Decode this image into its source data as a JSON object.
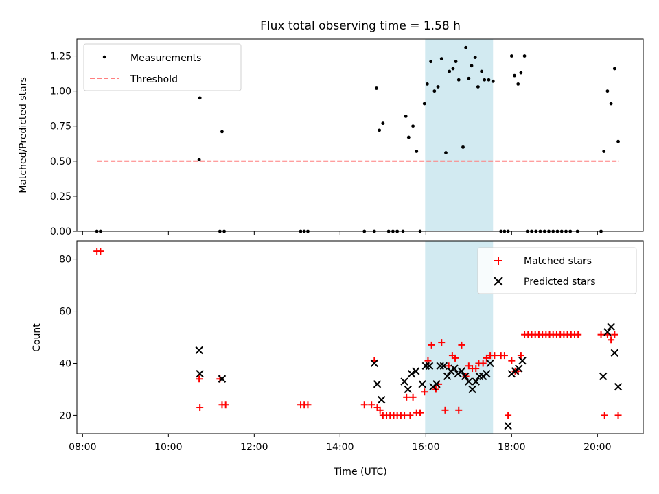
{
  "chart_data": [
    {
      "type": "scatter",
      "title": "Flux total observing time = 1.58 h",
      "ylabel": "Matched/Predicted stars",
      "xlim": [
        "07:52",
        "21:04"
      ],
      "ylim": [
        0,
        1.37
      ],
      "yticks": [
        "0.00",
        "0.25",
        "0.50",
        "0.75",
        "1.00",
        "1.25"
      ],
      "shaded_span": {
        "start": "15:59",
        "end": "17:34",
        "color": "#add8e6"
      },
      "legend_position": "top-left",
      "series": [
        {
          "name": "Measurements",
          "marker": "dot",
          "color": "#000000",
          "points": [
            [
              "08:20",
              0
            ],
            [
              "08:25",
              0
            ],
            [
              "10:44",
              0.95
            ],
            [
              "10:43",
              0.51
            ],
            [
              "11:15",
              0.71
            ],
            [
              "11:12",
              0
            ],
            [
              "11:18",
              0
            ],
            [
              "13:05",
              0
            ],
            [
              "13:10",
              0
            ],
            [
              "13:15",
              0
            ],
            [
              "14:34",
              0
            ],
            [
              "14:48",
              0
            ],
            [
              "14:51",
              1.02
            ],
            [
              "14:55",
              0.72
            ],
            [
              "15:00",
              0.77
            ],
            [
              "15:08",
              0
            ],
            [
              "15:14",
              0
            ],
            [
              "15:20",
              0
            ],
            [
              "15:28",
              0
            ],
            [
              "15:32",
              0.82
            ],
            [
              "15:36",
              0.67
            ],
            [
              "15:42",
              0.75
            ],
            [
              "15:47",
              0.57
            ],
            [
              "15:52",
              0
            ],
            [
              "15:58",
              0.91
            ],
            [
              "16:02",
              1.05
            ],
            [
              "16:07",
              1.21
            ],
            [
              "16:12",
              1.0
            ],
            [
              "16:17",
              1.03
            ],
            [
              "16:22",
              1.23
            ],
            [
              "16:28",
              0.56
            ],
            [
              "16:33",
              1.14
            ],
            [
              "16:38",
              1.16
            ],
            [
              "16:42",
              1.21
            ],
            [
              "16:46",
              1.08
            ],
            [
              "16:52",
              0.6
            ],
            [
              "16:56",
              1.31
            ],
            [
              "17:00",
              1.09
            ],
            [
              "17:04",
              1.18
            ],
            [
              "17:09",
              1.24
            ],
            [
              "17:13",
              1.03
            ],
            [
              "17:18",
              1.14
            ],
            [
              "17:22",
              1.08
            ],
            [
              "17:28",
              1.08
            ],
            [
              "17:34",
              1.07
            ],
            [
              "17:45",
              0
            ],
            [
              "17:50",
              0
            ],
            [
              "17:55",
              0
            ],
            [
              "18:00",
              1.25
            ],
            [
              "18:04",
              1.11
            ],
            [
              "18:09",
              1.05
            ],
            [
              "18:13",
              1.13
            ],
            [
              "18:18",
              1.25
            ],
            [
              "18:22",
              0
            ],
            [
              "18:28",
              0
            ],
            [
              "18:34",
              0
            ],
            [
              "18:40",
              0
            ],
            [
              "18:46",
              0
            ],
            [
              "18:52",
              0
            ],
            [
              "18:58",
              0
            ],
            [
              "19:04",
              0
            ],
            [
              "19:10",
              0
            ],
            [
              "19:16",
              0
            ],
            [
              "19:22",
              0
            ],
            [
              "19:32",
              0
            ],
            [
              "20:05",
              0
            ],
            [
              "20:09",
              0.57
            ],
            [
              "20:14",
              1.0
            ],
            [
              "20:19",
              0.91
            ],
            [
              "20:24",
              1.16
            ],
            [
              "20:29",
              0.64
            ]
          ]
        },
        {
          "name": "Threshold",
          "marker": "dashed-line",
          "color": "#ff7f7f",
          "points": [
            [
              "08:20",
              0.5
            ],
            [
              "20:30",
              0.5
            ]
          ]
        }
      ]
    },
    {
      "type": "scatter",
      "xlabel": "Time (UTC)",
      "ylabel": "Count",
      "xlim": [
        "07:52",
        "21:04"
      ],
      "ylim": [
        13,
        87
      ],
      "yticks": [
        "20",
        "40",
        "60",
        "80"
      ],
      "xticks": [
        "08:00",
        "10:00",
        "12:00",
        "14:00",
        "16:00",
        "18:00",
        "20:00"
      ],
      "shaded_span": {
        "start": "15:59",
        "end": "17:34",
        "color": "#add8e6"
      },
      "legend_position": "top-right",
      "series": [
        {
          "name": "Matched stars",
          "marker": "plus",
          "color": "#ff0000",
          "points": [
            [
              "08:20",
              83
            ],
            [
              "08:25",
              83
            ],
            [
              "10:43",
              34
            ],
            [
              "10:44",
              23
            ],
            [
              "11:12",
              34
            ],
            [
              "11:15",
              24
            ],
            [
              "11:20",
              24
            ],
            [
              "13:05",
              24
            ],
            [
              "13:10",
              24
            ],
            [
              "13:15",
              24
            ],
            [
              "14:34",
              24
            ],
            [
              "14:44",
              24
            ],
            [
              "14:48",
              41
            ],
            [
              "14:52",
              23
            ],
            [
              "14:56",
              22
            ],
            [
              "15:00",
              20
            ],
            [
              "15:05",
              20
            ],
            [
              "15:10",
              20
            ],
            [
              "15:15",
              20
            ],
            [
              "15:20",
              20
            ],
            [
              "15:25",
              20
            ],
            [
              "15:30",
              20
            ],
            [
              "15:33",
              27
            ],
            [
              "15:38",
              20
            ],
            [
              "15:42",
              27
            ],
            [
              "15:47",
              21
            ],
            [
              "15:52",
              21
            ],
            [
              "15:58",
              29
            ],
            [
              "16:03",
              41
            ],
            [
              "16:08",
              47
            ],
            [
              "16:14",
              30
            ],
            [
              "16:18",
              32
            ],
            [
              "16:22",
              48
            ],
            [
              "16:27",
              22
            ],
            [
              "16:32",
              39
            ],
            [
              "16:37",
              43
            ],
            [
              "16:41",
              42
            ],
            [
              "16:46",
              22
            ],
            [
              "16:50",
              47
            ],
            [
              "16:56",
              35
            ],
            [
              "17:00",
              39
            ],
            [
              "17:05",
              38
            ],
            [
              "17:10",
              38
            ],
            [
              "17:14",
              40
            ],
            [
              "17:20",
              40
            ],
            [
              "17:25",
              42
            ],
            [
              "17:30",
              43
            ],
            [
              "17:36",
              43
            ],
            [
              "17:45",
              43
            ],
            [
              "17:50",
              43
            ],
            [
              "17:55",
              20
            ],
            [
              "18:00",
              41
            ],
            [
              "18:05",
              37
            ],
            [
              "18:09",
              37
            ],
            [
              "18:13",
              43
            ],
            [
              "18:18",
              51
            ],
            [
              "18:23",
              51
            ],
            [
              "18:28",
              51
            ],
            [
              "18:33",
              51
            ],
            [
              "18:38",
              51
            ],
            [
              "18:43",
              51
            ],
            [
              "18:48",
              51
            ],
            [
              "18:53",
              51
            ],
            [
              "18:58",
              51
            ],
            [
              "19:03",
              51
            ],
            [
              "19:08",
              51
            ],
            [
              "19:13",
              51
            ],
            [
              "19:18",
              51
            ],
            [
              "19:23",
              51
            ],
            [
              "19:28",
              51
            ],
            [
              "19:33",
              51
            ],
            [
              "20:05",
              51
            ],
            [
              "20:10",
              20
            ],
            [
              "20:14",
              51
            ],
            [
              "20:19",
              49
            ],
            [
              "20:24",
              51
            ],
            [
              "20:29",
              20
            ]
          ]
        },
        {
          "name": "Predicted stars",
          "marker": "x",
          "color": "#000000",
          "points": [
            [
              "10:43",
              45
            ],
            [
              "10:44",
              36
            ],
            [
              "11:15",
              34
            ],
            [
              "14:48",
              40
            ],
            [
              "14:52",
              32
            ],
            [
              "14:58",
              26
            ],
            [
              "15:30",
              33
            ],
            [
              "15:35",
              30
            ],
            [
              "15:40",
              36
            ],
            [
              "15:46",
              37
            ],
            [
              "15:55",
              32
            ],
            [
              "16:00",
              39
            ],
            [
              "16:05",
              39
            ],
            [
              "16:10",
              31
            ],
            [
              "16:15",
              32
            ],
            [
              "16:20",
              39
            ],
            [
              "16:25",
              39
            ],
            [
              "16:30",
              35
            ],
            [
              "16:35",
              37
            ],
            [
              "16:40",
              38
            ],
            [
              "16:45",
              36
            ],
            [
              "16:50",
              37
            ],
            [
              "16:55",
              35
            ],
            [
              "17:00",
              33
            ],
            [
              "17:05",
              30
            ],
            [
              "17:10",
              33
            ],
            [
              "17:15",
              35
            ],
            [
              "17:20",
              35
            ],
            [
              "17:25",
              36
            ],
            [
              "17:30",
              40
            ],
            [
              "17:55",
              16
            ],
            [
              "18:00",
              36
            ],
            [
              "18:05",
              37
            ],
            [
              "18:10",
              38
            ],
            [
              "18:15",
              41
            ],
            [
              "20:08",
              35
            ],
            [
              "20:14",
              52
            ],
            [
              "20:19",
              54
            ],
            [
              "20:24",
              44
            ],
            [
              "20:29",
              31
            ]
          ]
        }
      ]
    }
  ]
}
